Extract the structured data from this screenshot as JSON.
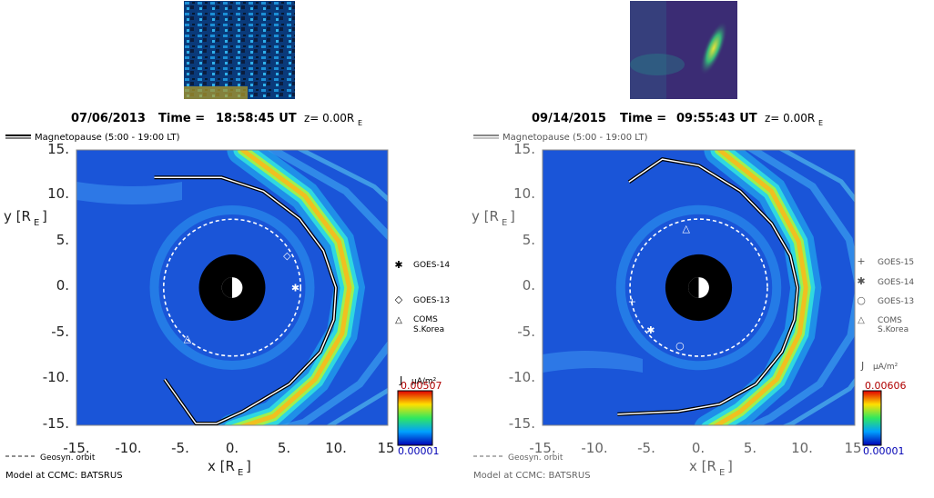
{
  "thumbnails": [
    {
      "name": "noise-thumbnail"
    },
    {
      "name": "spectrogram-thumbnail"
    }
  ],
  "chart_data": [
    {
      "type": "heatmap",
      "title_date": "07/06/2013",
      "title_time_label": "Time =",
      "title_time": "18:58:45 UT",
      "title_z": "z= 0.00R",
      "title_z_sub": "E",
      "legend_line": "Magnetopause (5:00 - 19:00 LT)",
      "xlabel": "x [R",
      "ylabel": "y [R",
      "label_sub": "E",
      "xlim": [
        -15,
        15
      ],
      "ylim": [
        -15,
        15
      ],
      "xticks": [
        "-15.",
        "-10.",
        "-5.",
        "0.",
        "5.",
        "10.",
        "15"
      ],
      "yticks": [
        "15.",
        "10.",
        "5.",
        "0.",
        "-5.",
        "-10.",
        "-15."
      ],
      "colorbar_label": "J",
      "colorbar_unit": "μA/m²",
      "colorbar_max": "0.00507",
      "colorbar_min": "0.00001",
      "geosync_label": "Geosyn. orbit",
      "model_label": "Model at CCMC: BATSRUS",
      "satellites": [
        {
          "name": "GOES-14",
          "marker": "asterisk",
          "x": 6.1,
          "y": 0.0
        },
        {
          "name": "GOES-13",
          "marker": "diamond",
          "x": 5.3,
          "y": 3.5
        },
        {
          "name": "COMS",
          "sub": "S.Korea",
          "marker": "triangle",
          "x": -4.3,
          "y": -5.5
        }
      ],
      "magnetopause": [
        [
          -7.5,
          12
        ],
        [
          -1,
          12
        ],
        [
          3,
          10.5
        ],
        [
          6.5,
          7.5
        ],
        [
          8.8,
          4
        ],
        [
          10,
          0
        ],
        [
          9.8,
          -3.5
        ],
        [
          8.5,
          -7
        ],
        [
          5.5,
          -10.5
        ],
        [
          1,
          -13.5
        ],
        [
          -1.5,
          -14.8
        ],
        [
          -3.5,
          -14.8
        ],
        [
          -6.5,
          -10
        ]
      ],
      "current_ridge": [
        [
          1,
          15
        ],
        [
          7,
          10
        ],
        [
          10.3,
          5
        ],
        [
          11.3,
          0
        ],
        [
          10.6,
          -5
        ],
        [
          8,
          -10
        ],
        [
          4,
          -14
        ],
        [
          0,
          -15.5
        ]
      ]
    },
    {
      "type": "heatmap",
      "title_date": "09/14/2015",
      "title_time_label": "Time =",
      "title_time": "09:55:43 UT",
      "title_z": "z= 0.00R",
      "title_z_sub": "E",
      "legend_line": "Magnetopause (5:00 - 19:00 LT)",
      "xlabel": "x [R",
      "ylabel": "y [R",
      "label_sub": "E",
      "xlim": [
        -15,
        15
      ],
      "ylim": [
        -15,
        15
      ],
      "xticks": [
        "-15.",
        "-10.",
        "-5.",
        "0.",
        "5.",
        "10.",
        "15"
      ],
      "yticks": [
        "15.",
        "10.",
        "5.",
        "0.",
        "-5.",
        "-10.",
        "-15."
      ],
      "colorbar_label": "J",
      "colorbar_unit": "μA/m²",
      "colorbar_max": "0.00606",
      "colorbar_min": "0.00001",
      "geosync_label": "Geosyn. orbit",
      "model_label": "Model at CCMC: BATSRUS",
      "satellites": [
        {
          "name": "GOES-15",
          "marker": "plus",
          "x": -6.4,
          "y": -1.5
        },
        {
          "name": "GOES-14",
          "marker": "asterisk",
          "x": -4.6,
          "y": -4.6
        },
        {
          "name": "GOES-13",
          "marker": "circle",
          "x": -1.8,
          "y": -6.3
        },
        {
          "name": "COMS",
          "sub": "S.Korea",
          "marker": "triangle",
          "x": -1.2,
          "y": 6.5
        }
      ],
      "magnetopause": [
        [
          -6.7,
          11.5
        ],
        [
          -3.5,
          14
        ],
        [
          0,
          13.3
        ],
        [
          4,
          10.5
        ],
        [
          7,
          7
        ],
        [
          8.8,
          3.5
        ],
        [
          9.5,
          0
        ],
        [
          9.2,
          -3.5
        ],
        [
          8,
          -7
        ],
        [
          5.5,
          -10.5
        ],
        [
          2,
          -12.7
        ],
        [
          -2,
          -13.5
        ],
        [
          -7.8,
          -13.8
        ]
      ],
      "current_ridge": [
        [
          2,
          15
        ],
        [
          7,
          10.5
        ],
        [
          9.6,
          5
        ],
        [
          10.3,
          0
        ],
        [
          9.7,
          -5
        ],
        [
          7.5,
          -10
        ],
        [
          4,
          -13.5
        ],
        [
          1,
          -15.5
        ]
      ]
    }
  ]
}
